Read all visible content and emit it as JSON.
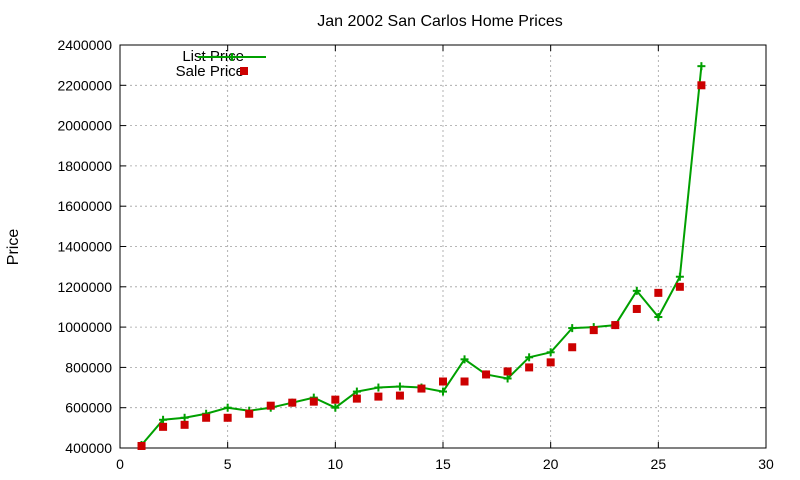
{
  "chart_data": {
    "type": "line",
    "title": "Jan 2002 San Carlos Home Prices",
    "xlabel": "",
    "ylabel": "Price",
    "xlim": [
      0,
      30
    ],
    "ylim": [
      400000,
      2400000
    ],
    "xticks": [
      "0",
      "5",
      "10",
      "15",
      "20",
      "25",
      "30"
    ],
    "yticks": [
      "400000",
      "600000",
      "800000",
      "1000000",
      "1200000",
      "1400000",
      "1600000",
      "1800000",
      "2000000",
      "2200000",
      "2400000"
    ],
    "grid": true,
    "legend_position": "top-left",
    "x": [
      1,
      2,
      3,
      4,
      5,
      6,
      7,
      8,
      9,
      10,
      11,
      12,
      13,
      14,
      15,
      16,
      17,
      18,
      19,
      20,
      21,
      22,
      23,
      24,
      25,
      26,
      27
    ],
    "series": [
      {
        "name": "List Price",
        "style": "line+cross",
        "color": "#00a000",
        "values": [
          415000,
          540000,
          550000,
          570000,
          600000,
          585000,
          600000,
          625000,
          650000,
          600000,
          680000,
          700000,
          705000,
          700000,
          680000,
          840000,
          765000,
          745000,
          850000,
          875000,
          995000,
          1000000,
          1010000,
          1180000,
          1050000,
          1250000,
          2295000
        ]
      },
      {
        "name": "Sale Price",
        "style": "square",
        "color": "#cc0000",
        "values": [
          410000,
          505000,
          515000,
          550000,
          550000,
          570000,
          610000,
          625000,
          630000,
          640000,
          645000,
          655000,
          660000,
          695000,
          730000,
          730000,
          765000,
          780000,
          800000,
          825000,
          900000,
          985000,
          1010000,
          1090000,
          1170000,
          1200000,
          2200000
        ]
      }
    ]
  }
}
